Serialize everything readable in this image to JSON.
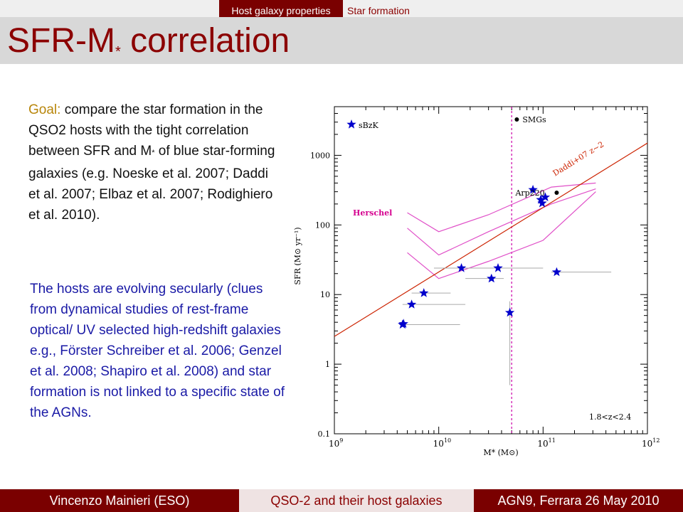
{
  "nav": {
    "active": "Host galaxy properties",
    "item": "Star formation"
  },
  "title": {
    "main": "SFR-M",
    "sub": "*",
    "rest": " correlation"
  },
  "goal": {
    "label": "Goal:",
    "text1": " compare the star formation in the QSO2 hosts with the tight correlation between SFR and M",
    "sub": "*",
    "text2": " of blue star-forming galaxies (e.g. Noeske et al. 2007; Daddi et al. 2007; Elbaz et al. 2007; Rodighiero et al. 2010)."
  },
  "hosts_text": "The hosts are evolving secularly (clues from dynamical studies of rest-frame optical/ UV selected high-redshift galaxies e.g., Förster Schreiber et al. 2006; Genzel et al. 2008; Shapiro et al. 2008) and star formation is not linked to a specific state of the AGNs.",
  "footer": {
    "left": "Vincenzo Mainieri (ESO)",
    "mid": "QSO-2 and their host galaxies",
    "right": "AGN9, Ferrara 26 May 2010"
  },
  "chart_data": {
    "type": "scatter",
    "xscale": "log",
    "yscale": "log",
    "xlim": [
      1000000000.0,
      1000000000000.0
    ],
    "ylim": [
      0.1,
      5000
    ],
    "xlabel": "M* (M⊙)",
    "ylabel": "SFR (M⊙ yr⁻¹)",
    "xticks": [
      1000000000.0,
      10000000000.0,
      100000000000.0,
      1000000000000.0
    ],
    "xtick_labels": [
      [
        "10",
        "9"
      ],
      [
        "10",
        "10"
      ],
      [
        "10",
        "11"
      ],
      [
        "10",
        "12"
      ]
    ],
    "yticks": [
      0.1,
      1,
      10,
      100,
      1000
    ],
    "ytick_labels": [
      "0.1",
      "1",
      "10",
      "100",
      "1000"
    ],
    "legend": [
      {
        "name": "sBzK",
        "marker": "star",
        "color": "#0000cc"
      },
      {
        "name": "SMGs",
        "marker": "dot",
        "color": "#000000"
      }
    ],
    "annotations": [
      {
        "text": "Arp220",
        "x": 60000000000.0,
        "y": 280
      },
      {
        "text": "Herschel",
        "color": "#d5008f"
      },
      {
        "text": "Daddi+07 z~2",
        "color": "#cc2200"
      },
      {
        "text": "1.8<z<2.4"
      }
    ],
    "points": [
      {
        "x": 4500000000.0,
        "y": 3.7,
        "xerr": [
          4200000000.0,
          16000000000.0
        ]
      },
      {
        "x": 5500000000.0,
        "y": 7.2,
        "xerr": [
          4500000000.0,
          18000000000.0
        ]
      },
      {
        "x": 7200000000.0,
        "y": 10.5,
        "xerr": [
          5500000000.0,
          13000000000.0
        ]
      },
      {
        "x": 16500000000.0,
        "y": 24,
        "xerr": [
          9000000000.0,
          30000000000.0
        ]
      },
      {
        "x": 37000000000.0,
        "y": 24,
        "xerr": [
          18000000000.0,
          100000000000.0
        ]
      },
      {
        "x": 32000000000.0,
        "y": 17,
        "xerr": [
          18000000000.0,
          42000000000.0
        ]
      },
      {
        "x": 48000000000.0,
        "y": 5.5,
        "yerr": [
          0.5,
          8.0
        ]
      },
      {
        "x": 135000000000.0,
        "y": 21,
        "xerr": [
          120000000000.0,
          450000000000.0
        ]
      },
      {
        "x": 80000000000.0,
        "y": 320
      },
      {
        "x": 95000000000.0,
        "y": 230
      },
      {
        "x": 105000000000.0,
        "y": 250
      },
      {
        "x": 98000000000.0,
        "y": 205
      },
      {
        "x": 4600000000.0,
        "y": 3.8
      }
    ],
    "arp220": {
      "x": 135000000000.0,
      "y": 290
    },
    "daddi_line": [
      {
        "x": 1000000000.0,
        "y": 2.5
      },
      {
        "x": 1000000000000.0,
        "y": 1500
      }
    ],
    "herschel_curves": [
      [
        [
          5000000000.0,
          150
        ],
        [
          10000000000.0,
          80
        ],
        [
          30000000000.0,
          140
        ],
        [
          120000000000.0,
          350
        ],
        [
          320000000000.0,
          400
        ]
      ],
      [
        [
          5000000000.0,
          90
        ],
        [
          10000000000.0,
          37
        ],
        [
          30000000000.0,
          80
        ],
        [
          120000000000.0,
          200
        ],
        [
          320000000000.0,
          330
        ]
      ],
      [
        [
          5000000000.0,
          40
        ],
        [
          10000000000.0,
          17
        ],
        [
          30000000000.0,
          30
        ],
        [
          100000000000.0,
          60
        ],
        [
          320000000000.0,
          300
        ]
      ]
    ],
    "vline_x": 50000000000.0
  }
}
